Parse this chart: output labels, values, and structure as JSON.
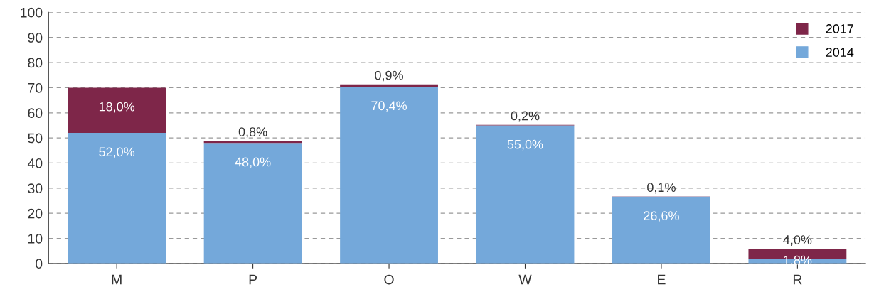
{
  "chart_data": {
    "type": "bar",
    "stacked": true,
    "categories": [
      "M",
      "P",
      "O",
      "W",
      "E",
      "R"
    ],
    "series": [
      {
        "name": "2014",
        "color": "#74a8da",
        "values": [
          52.0,
          48.0,
          70.4,
          55.0,
          26.6,
          1.8
        ],
        "value_labels": [
          "52,0%",
          "48,0%",
          "70,4%",
          "55,0%",
          "26,6%",
          "1,8%"
        ]
      },
      {
        "name": "2017",
        "color": "#7e2649",
        "values": [
          18.0,
          0.8,
          0.9,
          0.2,
          0.1,
          4.0
        ],
        "value_labels": [
          "18,0%",
          "0,8%",
          "0,9%",
          "0,2%",
          "0,1%",
          "4,0%"
        ]
      }
    ],
    "ylim": [
      0,
      100
    ],
    "yticks": [
      0,
      10,
      20,
      30,
      40,
      50,
      60,
      70,
      80,
      90,
      100
    ],
    "grid": "y",
    "legend": "top right"
  }
}
